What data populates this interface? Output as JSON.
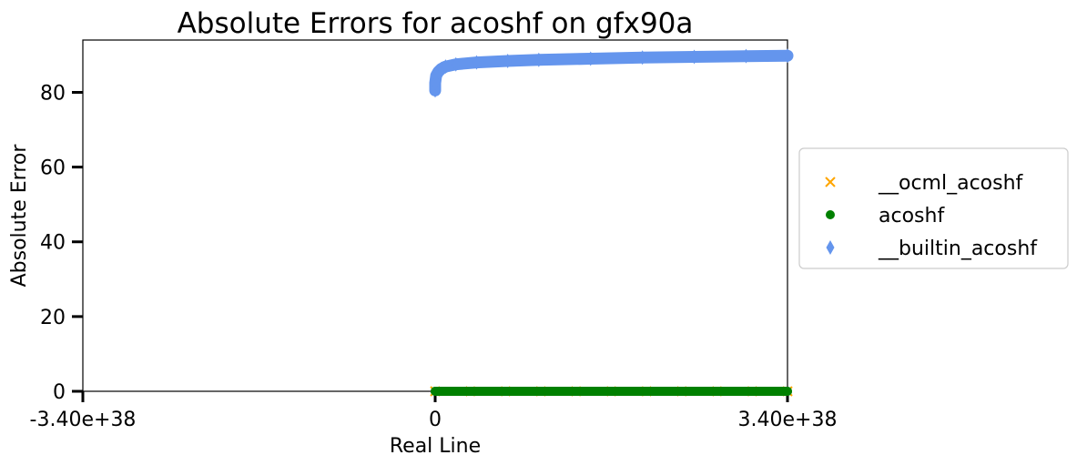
{
  "chart_data": {
    "type": "scatter",
    "title": "Absolute Errors for acoshf on gfx90a",
    "xlabel": "Real Line",
    "ylabel": "Absolute Error",
    "xlim": [
      -3.4e+38,
      3.4e+38
    ],
    "ylim": [
      0,
      94
    ],
    "x_ticks": [
      {
        "value": -3.4e+38,
        "label": "-3.40e+38"
      },
      {
        "value": 0,
        "label": "0"
      },
      {
        "value": 3.4e+38,
        "label": "3.40e+38"
      }
    ],
    "y_ticks": [
      {
        "value": 0,
        "label": "0"
      },
      {
        "value": 20,
        "label": "20"
      },
      {
        "value": 40,
        "label": "40"
      },
      {
        "value": 60,
        "label": "60"
      },
      {
        "value": 80,
        "label": "80"
      }
    ],
    "grid": false,
    "legend_position": "right, outside plot",
    "series": [
      {
        "name": "__ocml_acoshf",
        "marker": "x",
        "color": "#ffa500",
        "x": [
          0,
          3.4e+37,
          6.8e+37,
          1.02e+38,
          1.36e+38,
          1.7e+38,
          2.04e+38,
          2.38e+38,
          2.72e+38,
          3.06e+38,
          3.4e+38
        ],
        "y": [
          0,
          0,
          0,
          0,
          0,
          0,
          0,
          0,
          0,
          0,
          0
        ]
      },
      {
        "name": "acoshf",
        "marker": "circle",
        "color": "#008000",
        "x": [
          0,
          3.4e+37,
          6.8e+37,
          1.02e+38,
          1.36e+38,
          1.7e+38,
          2.04e+38,
          2.38e+38,
          2.72e+38,
          3.06e+38,
          3.4e+38
        ],
        "y": [
          0,
          0,
          0,
          0,
          0,
          0,
          0,
          0,
          0,
          0,
          0
        ]
      },
      {
        "name": "__builtin_acoshf",
        "marker": "thin_diamond",
        "color": "#6495ed",
        "x": [
          0,
          0,
          1e+36,
          3e+36,
          6e+36,
          1e+37,
          2e+37,
          4e+37,
          7e+37,
          1e+38,
          1.5e+38,
          2e+38,
          2.5e+38,
          3e+38,
          3.4e+38
        ],
        "y": [
          80.5,
          82.5,
          84.5,
          85.5,
          86.3,
          86.9,
          87.5,
          88.0,
          88.4,
          88.7,
          89.0,
          89.3,
          89.5,
          89.7,
          89.8
        ]
      }
    ]
  }
}
